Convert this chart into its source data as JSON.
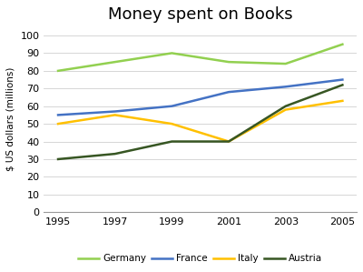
{
  "title": "Money spent on Books",
  "ylabel": "$ US dollars (millions)",
  "years": [
    1995,
    1997,
    1999,
    2001,
    2003,
    2005
  ],
  "series": {
    "Germany": {
      "values": [
        80,
        85,
        90,
        85,
        84,
        95
      ],
      "color": "#92d050",
      "linewidth": 1.8
    },
    "France": {
      "values": [
        55,
        57,
        60,
        68,
        71,
        75
      ],
      "color": "#4472c4",
      "linewidth": 1.8
    },
    "Italy": {
      "values": [
        50,
        55,
        50,
        40,
        58,
        63
      ],
      "color": "#ffc000",
      "linewidth": 1.8
    },
    "Austria": {
      "values": [
        30,
        33,
        40,
        40,
        60,
        72
      ],
      "color": "#375623",
      "linewidth": 1.8
    }
  },
  "ylim": [
    0,
    105
  ],
  "yticks": [
    0,
    10,
    20,
    30,
    40,
    50,
    60,
    70,
    80,
    90,
    100
  ],
  "background_color": "#ffffff",
  "legend_ncol": 4,
  "title_fontsize": 13,
  "axis_fontsize": 7.5,
  "tick_fontsize": 8
}
